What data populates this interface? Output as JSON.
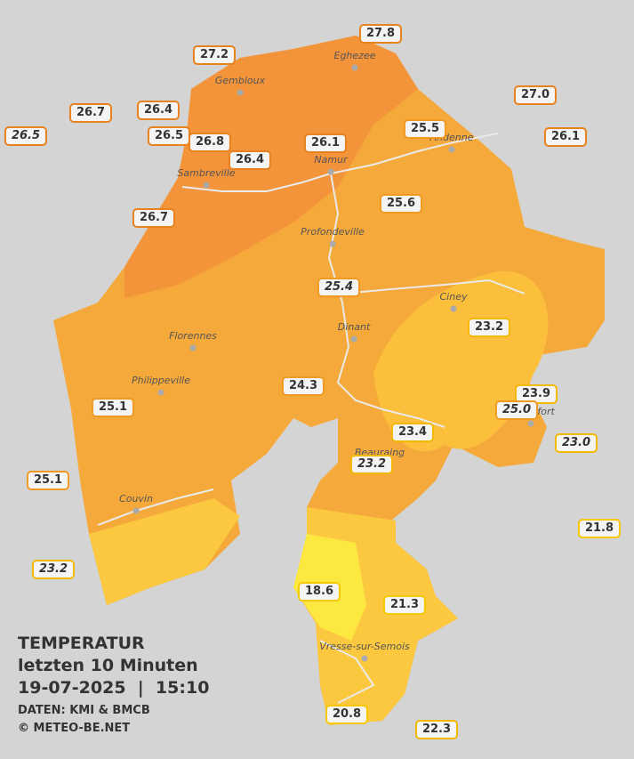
{
  "cities": [
    "Eghezee",
    "Gembloux",
    "Andenne",
    "Namur",
    "Sambreville",
    "Profondeville",
    "Ciney",
    "Dinant",
    "Florennes",
    "Philippeville",
    "Beauraing",
    "Couvin",
    "Vresse-sur-Semois",
    "Rochefort"
  ],
  "stations": [
    {
      "label": "27.8",
      "italic": false
    },
    {
      "label": "27.2",
      "italic": false
    },
    {
      "label": "27.0",
      "italic": false
    },
    {
      "label": "26.7",
      "italic": false
    },
    {
      "label": "26.4",
      "italic": false
    },
    {
      "label": "26.5",
      "italic": true
    },
    {
      "label": "26.5",
      "italic": false
    },
    {
      "label": "26.8",
      "italic": false
    },
    {
      "label": "26.4",
      "italic": false
    },
    {
      "label": "26.1",
      "italic": false
    },
    {
      "label": "25.5",
      "italic": false
    },
    {
      "label": "26.1",
      "italic": false
    },
    {
      "label": "25.6",
      "italic": false
    },
    {
      "label": "26.7",
      "italic": false
    },
    {
      "label": "25.4",
      "italic": true
    },
    {
      "label": "23.2",
      "italic": false
    },
    {
      "label": "23.9",
      "italic": false
    },
    {
      "label": "25.0",
      "italic": true
    },
    {
      "label": "24.3",
      "italic": false
    },
    {
      "label": "25.1",
      "italic": false
    },
    {
      "label": "23.4",
      "italic": false
    },
    {
      "label": "23.0",
      "italic": true
    },
    {
      "label": "23.2",
      "italic": true
    },
    {
      "label": "25.1",
      "italic": false
    },
    {
      "label": "21.8",
      "italic": false
    },
    {
      "label": "23.2",
      "italic": true
    },
    {
      "label": "18.6",
      "italic": false
    },
    {
      "label": "21.3",
      "italic": false
    },
    {
      "label": "20.8",
      "italic": false
    },
    {
      "label": "22.3",
      "italic": false
    }
  ],
  "footer": {
    "title": "TEMPERATUR",
    "subtitle": "letzten 10 Minuten",
    "timestamp": "19-07-2025  |  15:10",
    "source": "DATEN: KMI & BMCB",
    "copyright": "© METEO-BE.NET"
  }
}
